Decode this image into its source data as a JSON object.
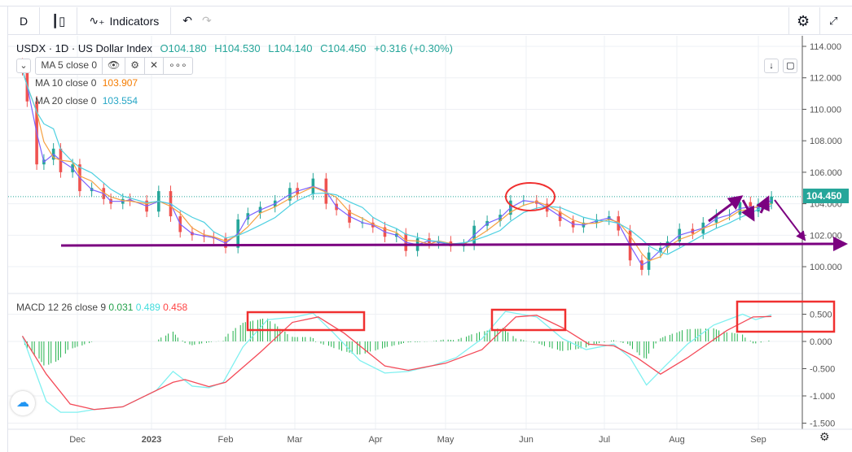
{
  "toolbar": {
    "interval": "D",
    "candle_icon": "candles-icon",
    "indicators": "Indicators",
    "undo": "↶",
    "redo": "↷",
    "settings_icon": "gear-icon",
    "fullscreen_icon": "fullscreen-icon"
  },
  "legend": {
    "title": "USDX · 1D · US Dollar Index",
    "open": "O104.180",
    "high": "H104.530",
    "low": "L104.140",
    "close": "C104.450",
    "change": "+0.316 (+0.30%)"
  },
  "ma": [
    {
      "label": "MA 5 close 0",
      "value": "",
      "color": "#7b61ff"
    },
    {
      "label": "MA 10 close 0",
      "value": "103.907",
      "color": "#f57c00"
    },
    {
      "label": "MA 20 close 0",
      "value": "103.554",
      "color": "#26c6da"
    }
  ],
  "macd_legend": {
    "label": "MACD 12 26 close 9",
    "hist": "0.031",
    "macd": "0.489",
    "signal": "0.458"
  },
  "price_badge": "104.450",
  "colors": {
    "up": "#26a69a",
    "down": "#ef5350",
    "macd": "#7ff0f0",
    "signal": "#f44a58",
    "hist": "#22b14c",
    "annot_purple": "#7b0080",
    "annot_red": "#f03030"
  },
  "chart_data": [
    {
      "type": "candlestick",
      "title": "USDX · 1D · US Dollar Index",
      "yaxis_ticks": [
        "114.000",
        "112.000",
        "110.000",
        "108.000",
        "106.000",
        "104.000",
        "102.000",
        "100.000"
      ],
      "ylim": [
        99.5,
        114.5
      ],
      "x_ticks": [
        "Dec",
        "2023",
        "Feb",
        "Mar",
        "Apr",
        "May",
        "Jun",
        "Jul",
        "Aug",
        "Sep"
      ],
      "close": [
        [
          "2022-11-08",
          112.5
        ],
        [
          "2022-11-10",
          110.5
        ],
        [
          "2022-11-14",
          106.5
        ],
        [
          "2022-11-17",
          106.8
        ],
        [
          "2022-11-21",
          107.5
        ],
        [
          "2022-11-24",
          106.0
        ],
        [
          "2022-11-29",
          106.5
        ],
        [
          "2022-12-02",
          104.8
        ],
        [
          "2022-12-07",
          105.0
        ],
        [
          "2022-12-12",
          104.3
        ],
        [
          "2022-12-15",
          104.0
        ],
        [
          "2022-12-20",
          104.3
        ],
        [
          "2022-12-23",
          104.2
        ],
        [
          "2022-12-30",
          103.5
        ],
        [
          "2023-01-04",
          104.8
        ],
        [
          "2023-01-09",
          103.2
        ],
        [
          "2023-01-13",
          102.2
        ],
        [
          "2023-01-18",
          102.0
        ],
        [
          "2023-01-23",
          101.9
        ],
        [
          "2023-01-27",
          101.8
        ],
        [
          "2023-02-01",
          101.2
        ],
        [
          "2023-02-06",
          103.0
        ],
        [
          "2023-02-10",
          103.4
        ],
        [
          "2023-02-15",
          103.8
        ],
        [
          "2023-02-21",
          104.2
        ],
        [
          "2023-02-27",
          105.0
        ],
        [
          "2023-03-02",
          104.6
        ],
        [
          "2023-03-08",
          105.6
        ],
        [
          "2023-03-13",
          104.0
        ],
        [
          "2023-03-17",
          103.6
        ],
        [
          "2023-03-22",
          102.8
        ],
        [
          "2023-03-27",
          102.8
        ],
        [
          "2023-03-31",
          102.5
        ],
        [
          "2023-04-05",
          101.9
        ],
        [
          "2023-04-10",
          102.1
        ],
        [
          "2023-04-14",
          101.0
        ],
        [
          "2023-04-19",
          101.8
        ],
        [
          "2023-04-24",
          101.5
        ],
        [
          "2023-04-28",
          101.6
        ],
        [
          "2023-05-03",
          101.3
        ],
        [
          "2023-05-08",
          101.4
        ],
        [
          "2023-05-12",
          102.6
        ],
        [
          "2023-05-17",
          102.9
        ],
        [
          "2023-05-22",
          103.3
        ],
        [
          "2023-05-26",
          104.2
        ],
        [
          "2023-05-31",
          104.2
        ],
        [
          "2023-06-05",
          104.0
        ],
        [
          "2023-06-09",
          103.5
        ],
        [
          "2023-06-14",
          102.9
        ],
        [
          "2023-06-19",
          102.5
        ],
        [
          "2023-06-23",
          102.8
        ],
        [
          "2023-06-28",
          103.0
        ],
        [
          "2023-07-03",
          103.2
        ],
        [
          "2023-07-07",
          102.3
        ],
        [
          "2023-07-12",
          100.4
        ],
        [
          "2023-07-17",
          99.8
        ],
        [
          "2023-07-20",
          100.9
        ],
        [
          "2023-07-25",
          101.2
        ],
        [
          "2023-07-28",
          101.6
        ],
        [
          "2023-08-02",
          102.4
        ],
        [
          "2023-08-07",
          102.1
        ],
        [
          "2023-08-11",
          102.8
        ],
        [
          "2023-08-16",
          103.3
        ],
        [
          "2023-08-21",
          103.3
        ],
        [
          "2023-08-25",
          104.1
        ],
        [
          "2023-08-29",
          103.5
        ],
        [
          "2023-09-01",
          104.0
        ],
        [
          "2023-09-06",
          104.45
        ]
      ]
    },
    {
      "type": "line",
      "title": "MACD 12 26 close 9",
      "yaxis_ticks": [
        "0.500",
        "0.000",
        "-0.500",
        "-1.000",
        "-1.500"
      ],
      "ylim": [
        -1.5,
        0.5
      ],
      "series": [
        {
          "name": "MACD",
          "points": [
            [
              "2022-11-08",
              0.1
            ],
            [
              "2022-11-13",
              -0.5
            ],
            [
              "2022-11-18",
              -1.1
            ],
            [
              "2022-11-24",
              -1.3
            ],
            [
              "2022-12-01",
              -1.3
            ],
            [
              "2022-12-08",
              -1.25
            ],
            [
              "2022-12-20",
              -1.2
            ],
            [
              "2023-01-03",
              -0.9
            ],
            [
              "2023-01-10",
              -0.55
            ],
            [
              "2023-01-18",
              -0.82
            ],
            [
              "2023-01-25",
              -0.85
            ],
            [
              "2023-01-31",
              -0.75
            ],
            [
              "2023-02-08",
              -0.1
            ],
            [
              "2023-02-18",
              0.4
            ],
            [
              "2023-03-01",
              0.45
            ],
            [
              "2023-03-08",
              0.52
            ],
            [
              "2023-03-16",
              0.15
            ],
            [
              "2023-03-26",
              -0.35
            ],
            [
              "2023-04-05",
              -0.58
            ],
            [
              "2023-04-15",
              -0.55
            ],
            [
              "2023-04-25",
              -0.45
            ],
            [
              "2023-05-05",
              -0.3
            ],
            [
              "2023-05-15",
              0.05
            ],
            [
              "2023-05-24",
              0.55
            ],
            [
              "2023-06-05",
              0.45
            ],
            [
              "2023-06-15",
              0.05
            ],
            [
              "2023-06-24",
              -0.15
            ],
            [
              "2023-07-05",
              -0.05
            ],
            [
              "2023-07-12",
              -0.3
            ],
            [
              "2023-07-19",
              -0.8
            ],
            [
              "2023-07-27",
              -0.45
            ],
            [
              "2023-08-05",
              -0.05
            ],
            [
              "2023-08-15",
              0.3
            ],
            [
              "2023-08-26",
              0.5
            ],
            [
              "2023-08-31",
              0.4
            ],
            [
              "2023-09-06",
              0.489
            ]
          ]
        },
        {
          "name": "Signal",
          "points": [
            [
              "2022-11-08",
              0.1
            ],
            [
              "2022-11-18",
              -0.6
            ],
            [
              "2022-11-28",
              -1.15
            ],
            [
              "2022-12-08",
              -1.25
            ],
            [
              "2022-12-20",
              -1.2
            ],
            [
              "2023-01-10",
              -0.75
            ],
            [
              "2023-01-15",
              -0.7
            ],
            [
              "2023-01-25",
              -0.83
            ],
            [
              "2023-02-01",
              -0.75
            ],
            [
              "2023-02-15",
              -0.2
            ],
            [
              "2023-02-28",
              0.35
            ],
            [
              "2023-03-10",
              0.45
            ],
            [
              "2023-03-20",
              0.15
            ],
            [
              "2023-04-05",
              -0.45
            ],
            [
              "2023-04-15",
              -0.53
            ],
            [
              "2023-05-01",
              -0.4
            ],
            [
              "2023-05-15",
              -0.15
            ],
            [
              "2023-05-28",
              0.45
            ],
            [
              "2023-06-05",
              0.48
            ],
            [
              "2023-06-15",
              0.25
            ],
            [
              "2023-06-25",
              -0.05
            ],
            [
              "2023-07-05",
              -0.08
            ],
            [
              "2023-07-15",
              -0.3
            ],
            [
              "2023-07-25",
              -0.6
            ],
            [
              "2023-08-05",
              -0.3
            ],
            [
              "2023-08-20",
              0.2
            ],
            [
              "2023-08-30",
              0.45
            ],
            [
              "2023-09-06",
              0.458
            ]
          ]
        }
      ]
    }
  ]
}
